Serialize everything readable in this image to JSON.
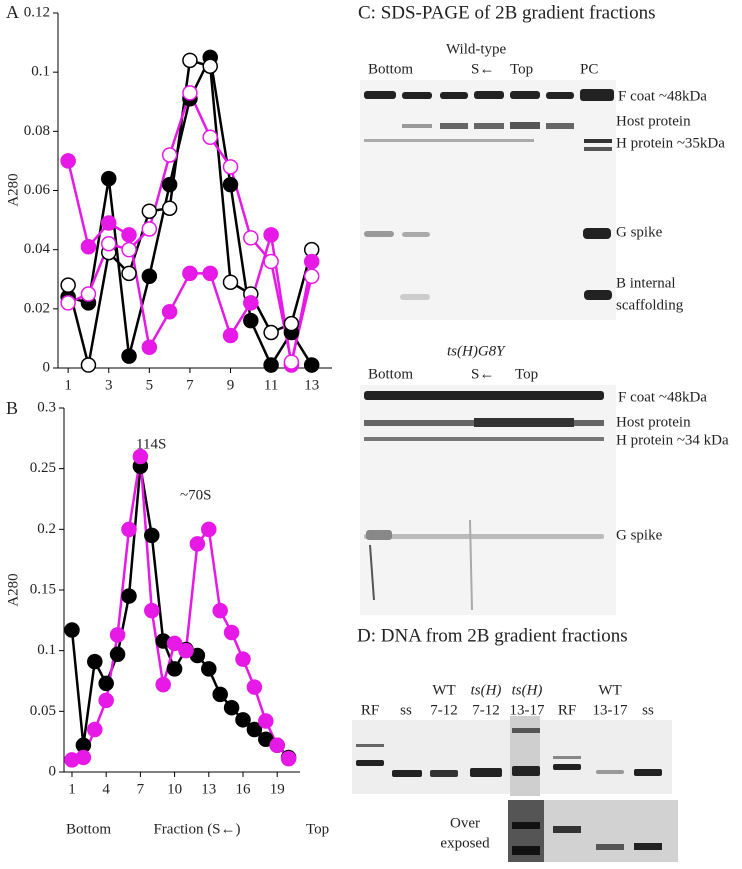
{
  "chart_data": [
    {
      "type": "line",
      "label": "A",
      "ylabel": "A280",
      "x": [
        1,
        2,
        3,
        4,
        5,
        6,
        7,
        8,
        9,
        10,
        11,
        12,
        13
      ],
      "xlim": [
        0.5,
        14
      ],
      "ylim": [
        0,
        0.12
      ],
      "xticks": [
        1,
        3,
        5,
        7,
        9,
        11,
        13
      ],
      "yticks": [
        0,
        0.02,
        0.04,
        0.06,
        0.08,
        0.1,
        0.12
      ],
      "series": [
        {
          "color": "#000000",
          "marker": "filled",
          "values": [
            0.024,
            0.022,
            0.064,
            0.004,
            0.031,
            0.062,
            0.091,
            0.105,
            0.062,
            0.016,
            0.001,
            0.012,
            0.001
          ]
        },
        {
          "color": "#000000",
          "marker": "open",
          "values": [
            0.028,
            0.001,
            0.039,
            0.032,
            0.053,
            0.054,
            0.104,
            0.102,
            0.029,
            0.025,
            0.012,
            0.015,
            0.04
          ]
        },
        {
          "color": "#e619e6",
          "marker": "filled",
          "values": [
            0.07,
            0.041,
            0.049,
            0.045,
            0.007,
            0.019,
            0.032,
            0.032,
            0.011,
            0.022,
            0.045,
            0.001,
            0.036
          ]
        },
        {
          "color": "#e619e6",
          "marker": "open",
          "values": [
            0.022,
            0.025,
            0.042,
            0.04,
            0.047,
            0.072,
            0.093,
            0.078,
            0.068,
            0.044,
            0.036,
            0.002,
            0.031
          ]
        }
      ]
    },
    {
      "type": "line",
      "label": "B",
      "ylabel": "A280",
      "xlabel_left": "Bottom",
      "xlabel": "Fraction (S←)",
      "xlabel_right": "Top",
      "annotations": [
        "114S",
        "~70S"
      ],
      "x": [
        1,
        2,
        3,
        4,
        5,
        6,
        7,
        8,
        9,
        10,
        11,
        12,
        13,
        14,
        15,
        16,
        17,
        18,
        19,
        20
      ],
      "xlim": [
        0.3,
        21
      ],
      "ylim": [
        0,
        0.3
      ],
      "xticks": [
        1,
        4,
        7,
        10,
        13,
        16,
        19
      ],
      "yticks": [
        0,
        0.05,
        0.1,
        0.15,
        0.2,
        0.25,
        0.3
      ],
      "series": [
        {
          "color": "#000000",
          "marker": "filled",
          "values": [
            0.117,
            0.022,
            0.091,
            0.073,
            0.097,
            0.145,
            0.252,
            0.195,
            0.108,
            0.085,
            0.101,
            0.096,
            0.085,
            0.064,
            0.053,
            0.043,
            0.035,
            0.027,
            0.022,
            0.012
          ]
        },
        {
          "color": "#e619e6",
          "marker": "filled",
          "values": [
            0.01,
            0.012,
            0.035,
            0.059,
            0.113,
            0.2,
            0.26,
            0.133,
            0.072,
            0.106,
            0.1,
            0.188,
            0.2,
            0.133,
            0.115,
            0.093,
            0.07,
            0.042,
            0.022,
            0.011
          ]
        }
      ]
    }
  ],
  "panel_c": {
    "title": "C: SDS-PAGE of 2B gradient fractions",
    "gel1": {
      "lanes": [
        "Bottom",
        "Wild-type",
        "S←",
        "Top",
        "PC"
      ],
      "bands": [
        "F coat ~48kDa",
        "Host protein",
        "H protein ~35kDa",
        "G spike",
        "B internal",
        "scaffolding"
      ]
    },
    "gel2": {
      "lanes": [
        "ts(H)G8Y",
        "Bottom",
        "S←",
        "Top"
      ],
      "bands": [
        "F coat ~48kDa",
        "Host protein",
        "H protein ~34 kDa",
        "G spike"
      ]
    }
  },
  "panel_d": {
    "title": "D: DNA from 2B gradient fractions",
    "lanes": [
      [
        "RF"
      ],
      [
        "ss"
      ],
      [
        "WT",
        "7-12"
      ],
      [
        "ts(H)",
        "7-12"
      ],
      [
        "ts(H)",
        "13-17"
      ],
      [
        "RF"
      ],
      [
        "WT",
        "13-17"
      ],
      [
        "ss"
      ]
    ],
    "note": [
      "Over",
      "exposed"
    ]
  }
}
